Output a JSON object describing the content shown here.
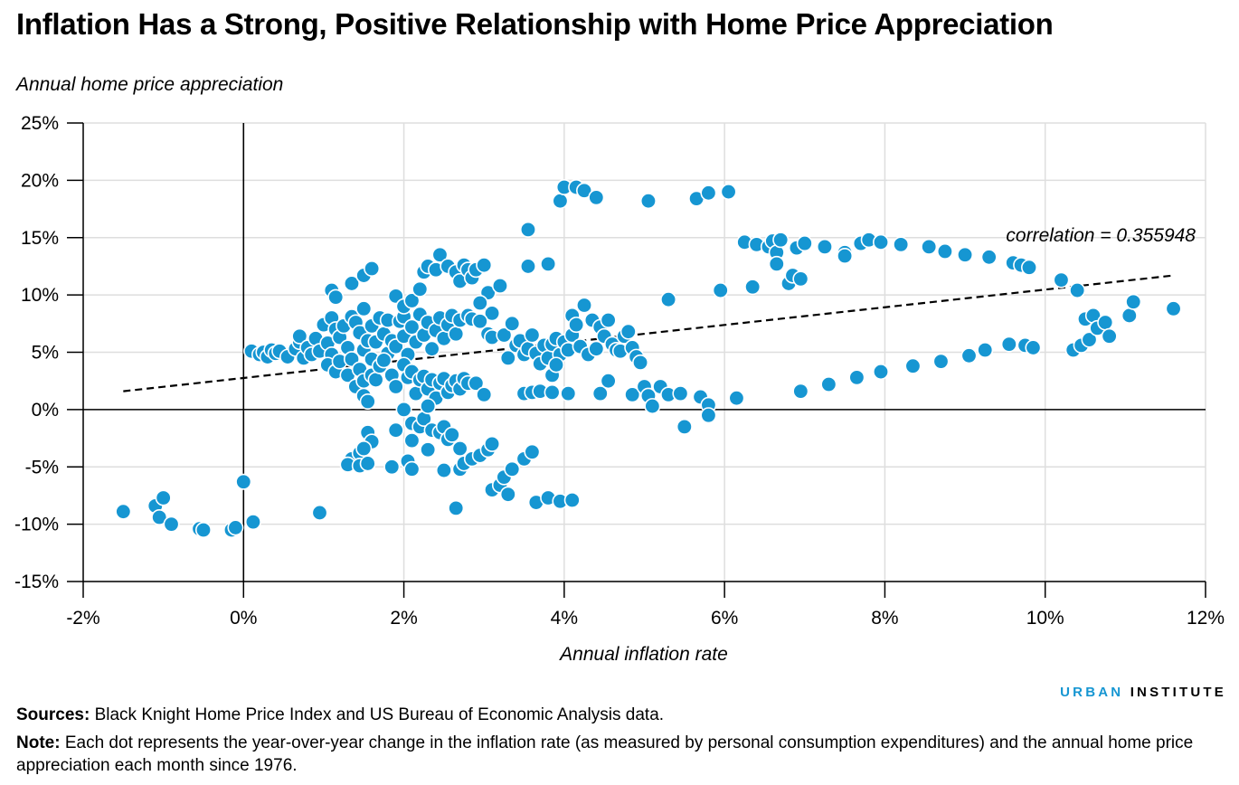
{
  "title": "Inflation Has a Strong, Positive Relationship with Home Price Appreciation",
  "brand": {
    "part1": "URBAN",
    "part2": "INSTITUTE"
  },
  "footer": {
    "sources_label": "Sources:",
    "sources_text": "Black Knight Home Price Index and US Bureau of Economic Analysis data.",
    "note_label": "Note:",
    "note_text": "Each dot represents the year-over-year change in the inflation rate (as measured by personal consumption expenditures) and the annual home price appreciation each month since 1976."
  },
  "colors": {
    "dot": "#1696d2",
    "grid": "#dedede",
    "axis": "#000000",
    "text": "#000000"
  },
  "chart_data": {
    "type": "scatter",
    "xlabel": "Annual inflation rate",
    "ylabel": "Annual home price appreciation",
    "xlim": [
      -2,
      12
    ],
    "ylim": [
      -15,
      25
    ],
    "xticks": [
      -2,
      0,
      2,
      4,
      6,
      8,
      10,
      12
    ],
    "yticks": [
      -15,
      -10,
      -5,
      0,
      5,
      10,
      15,
      20,
      25
    ],
    "xtick_labels": [
      "-2%",
      "0%",
      "2%",
      "4%",
      "6%",
      "8%",
      "10%",
      "12%"
    ],
    "ytick_labels": [
      "-15%",
      "-10%",
      "-5%",
      "0%",
      "5%",
      "10%",
      "15%",
      "20%",
      "25%"
    ],
    "grid": true,
    "trendline": {
      "style": "dashed",
      "x": [
        -1.5,
        11.6
      ],
      "y": [
        1.6,
        11.7
      ]
    },
    "annotation": "correlation = 0.355948",
    "points": [
      [
        -1.5,
        -8.9
      ],
      [
        -1.1,
        -8.4
      ],
      [
        -1.05,
        -9.4
      ],
      [
        -1.0,
        -7.7
      ],
      [
        -0.9,
        -10.0
      ],
      [
        -0.55,
        -10.4
      ],
      [
        -0.5,
        -10.5
      ],
      [
        -0.15,
        -10.5
      ],
      [
        -0.1,
        -10.3
      ],
      [
        0.0,
        -6.3
      ],
      [
        0.12,
        -9.8
      ],
      [
        0.95,
        -9.0
      ],
      [
        0.1,
        5.1
      ],
      [
        0.2,
        4.8
      ],
      [
        0.25,
        5.0
      ],
      [
        0.3,
        4.6
      ],
      [
        0.35,
        5.2
      ],
      [
        0.4,
        4.9
      ],
      [
        0.45,
        5.1
      ],
      [
        0.55,
        4.6
      ],
      [
        0.65,
        5.3
      ],
      [
        0.7,
        5.9
      ],
      [
        0.7,
        6.4
      ],
      [
        0.75,
        4.5
      ],
      [
        0.8,
        5.4
      ],
      [
        0.85,
        4.8
      ],
      [
        0.9,
        6.2
      ],
      [
        0.95,
        5.1
      ],
      [
        1.0,
        7.4
      ],
      [
        1.05,
        5.8
      ],
      [
        1.1,
        8.0
      ],
      [
        1.15,
        7.0
      ],
      [
        1.1,
        4.8
      ],
      [
        1.2,
        6.3
      ],
      [
        1.25,
        7.3
      ],
      [
        1.3,
        5.4
      ],
      [
        1.35,
        8.1
      ],
      [
        1.4,
        7.6
      ],
      [
        1.45,
        6.7
      ],
      [
        1.5,
        5.2
      ],
      [
        1.5,
        8.8
      ],
      [
        1.55,
        6.0
      ],
      [
        1.6,
        7.3
      ],
      [
        1.6,
        4.4
      ],
      [
        1.65,
        5.9
      ],
      [
        1.7,
        8.0
      ],
      [
        1.75,
        6.6
      ],
      [
        1.8,
        4.9
      ],
      [
        1.8,
        7.8
      ],
      [
        1.85,
        6.0
      ],
      [
        1.9,
        5.5
      ],
      [
        1.95,
        7.7
      ],
      [
        2.0,
        6.4
      ],
      [
        2.0,
        8.1
      ],
      [
        2.05,
        4.8
      ],
      [
        2.1,
        7.2
      ],
      [
        2.15,
        5.9
      ],
      [
        2.2,
        8.3
      ],
      [
        2.25,
        6.5
      ],
      [
        2.3,
        7.6
      ],
      [
        2.35,
        5.3
      ],
      [
        2.4,
        6.9
      ],
      [
        2.45,
        8.0
      ],
      [
        2.5,
        6.2
      ],
      [
        2.55,
        7.4
      ],
      [
        2.6,
        8.2
      ],
      [
        2.65,
        6.6
      ],
      [
        2.7,
        7.8
      ],
      [
        2.8,
        8.2
      ],
      [
        2.85,
        7.9
      ],
      [
        1.1,
        10.4
      ],
      [
        1.15,
        9.8
      ],
      [
        1.35,
        11.0
      ],
      [
        1.5,
        11.7
      ],
      [
        1.6,
        12.3
      ],
      [
        1.9,
        9.9
      ],
      [
        2.0,
        9.0
      ],
      [
        2.1,
        9.5
      ],
      [
        2.2,
        10.5
      ],
      [
        2.25,
        12.0
      ],
      [
        2.3,
        12.5
      ],
      [
        2.4,
        12.2
      ],
      [
        2.45,
        13.5
      ],
      [
        2.55,
        12.5
      ],
      [
        2.65,
        12.0
      ],
      [
        2.7,
        11.2
      ],
      [
        2.75,
        12.6
      ],
      [
        2.8,
        12.2
      ],
      [
        2.85,
        11.5
      ],
      [
        2.9,
        12.2
      ],
      [
        3.0,
        12.6
      ],
      [
        3.05,
        10.2
      ],
      [
        3.2,
        10.8
      ],
      [
        2.95,
        9.3
      ],
      [
        3.1,
        8.4
      ],
      [
        2.95,
        7.7
      ],
      [
        3.05,
        6.6
      ],
      [
        3.1,
        6.3
      ],
      [
        1.05,
        3.9
      ],
      [
        1.15,
        3.3
      ],
      [
        1.2,
        4.2
      ],
      [
        1.3,
        3.0
      ],
      [
        1.35,
        4.4
      ],
      [
        1.4,
        2.0
      ],
      [
        1.45,
        3.5
      ],
      [
        1.5,
        2.5
      ],
      [
        1.5,
        1.2
      ],
      [
        1.55,
        0.7
      ],
      [
        1.6,
        3.0
      ],
      [
        1.65,
        2.6
      ],
      [
        1.7,
        3.8
      ],
      [
        1.75,
        4.3
      ],
      [
        1.85,
        3.0
      ],
      [
        1.9,
        2.0
      ],
      [
        2.0,
        3.9
      ],
      [
        2.05,
        2.8
      ],
      [
        2.1,
        3.3
      ],
      [
        2.15,
        1.4
      ],
      [
        2.2,
        2.6
      ],
      [
        2.25,
        2.9
      ],
      [
        2.3,
        1.8
      ],
      [
        2.35,
        2.6
      ],
      [
        2.4,
        1.0
      ],
      [
        2.45,
        2.3
      ],
      [
        2.5,
        2.7
      ],
      [
        2.55,
        1.5
      ],
      [
        2.6,
        2.1
      ],
      [
        2.65,
        2.5
      ],
      [
        2.7,
        1.8
      ],
      [
        2.75,
        2.7
      ],
      [
        2.8,
        2.3
      ],
      [
        2.9,
        2.3
      ],
      [
        3.0,
        1.3
      ],
      [
        2.0,
        0.0
      ],
      [
        2.1,
        -1.2
      ],
      [
        2.2,
        -1.5
      ],
      [
        2.25,
        -0.8
      ],
      [
        2.3,
        0.3
      ],
      [
        2.35,
        -1.8
      ],
      [
        2.45,
        -2.0
      ],
      [
        2.5,
        -1.5
      ],
      [
        2.55,
        -2.6
      ],
      [
        2.6,
        -2.2
      ],
      [
        2.7,
        -3.4
      ],
      [
        1.9,
        -1.8
      ],
      [
        2.1,
        -2.7
      ],
      [
        1.55,
        -2.0
      ],
      [
        1.6,
        -2.8
      ],
      [
        1.35,
        -4.3
      ],
      [
        1.45,
        -3.8
      ],
      [
        1.5,
        -3.4
      ],
      [
        1.3,
        -4.8
      ],
      [
        1.45,
        -4.9
      ],
      [
        1.55,
        -4.7
      ],
      [
        1.85,
        -5.0
      ],
      [
        2.05,
        -4.5
      ],
      [
        2.1,
        -5.2
      ],
      [
        2.3,
        -3.5
      ],
      [
        2.5,
        -5.3
      ],
      [
        2.7,
        -5.2
      ],
      [
        2.75,
        -4.7
      ],
      [
        2.85,
        -4.3
      ],
      [
        2.95,
        -4.0
      ],
      [
        3.05,
        -3.5
      ],
      [
        3.1,
        -3.0
      ],
      [
        3.1,
        -7.0
      ],
      [
        3.2,
        -6.6
      ],
      [
        3.25,
        -5.9
      ],
      [
        3.3,
        -7.4
      ],
      [
        3.35,
        -5.2
      ],
      [
        3.5,
        -4.3
      ],
      [
        3.6,
        -3.7
      ],
      [
        3.65,
        -8.1
      ],
      [
        3.8,
        -7.7
      ],
      [
        3.95,
        -8.0
      ],
      [
        4.1,
        -7.9
      ],
      [
        2.65,
        -8.6
      ],
      [
        3.25,
        6.5
      ],
      [
        3.3,
        4.5
      ],
      [
        3.35,
        7.5
      ],
      [
        3.4,
        5.6
      ],
      [
        3.45,
        6.0
      ],
      [
        3.5,
        4.8
      ],
      [
        3.55,
        5.3
      ],
      [
        3.6,
        6.5
      ],
      [
        3.65,
        4.9
      ],
      [
        3.7,
        4.0
      ],
      [
        3.75,
        5.6
      ],
      [
        3.8,
        4.5
      ],
      [
        3.85,
        5.7
      ],
      [
        3.9,
        6.2
      ],
      [
        3.95,
        4.8
      ],
      [
        4.0,
        5.9
      ],
      [
        4.05,
        5.2
      ],
      [
        4.1,
        6.5
      ],
      [
        4.1,
        8.2
      ],
      [
        4.15,
        7.4
      ],
      [
        4.2,
        5.5
      ],
      [
        4.25,
        9.1
      ],
      [
        4.3,
        4.8
      ],
      [
        4.35,
        7.8
      ],
      [
        4.4,
        5.3
      ],
      [
        4.45,
        7.2
      ],
      [
        4.5,
        6.4
      ],
      [
        4.55,
        7.8
      ],
      [
        4.6,
        5.7
      ],
      [
        4.65,
        5.2
      ],
      [
        4.7,
        5.1
      ],
      [
        4.75,
        6.4
      ],
      [
        4.8,
        6.8
      ],
      [
        4.85,
        5.4
      ],
      [
        4.9,
        4.6
      ],
      [
        4.95,
        4.1
      ],
      [
        3.5,
        1.4
      ],
      [
        3.6,
        1.5
      ],
      [
        3.7,
        1.6
      ],
      [
        3.85,
        1.5
      ],
      [
        3.85,
        3.0
      ],
      [
        3.9,
        3.9
      ],
      [
        4.05,
        1.4
      ],
      [
        4.45,
        1.4
      ],
      [
        4.55,
        2.5
      ],
      [
        4.85,
        1.3
      ],
      [
        5.0,
        2.0
      ],
      [
        5.05,
        1.2
      ],
      [
        5.1,
        0.3
      ],
      [
        5.2,
        2.0
      ],
      [
        5.3,
        1.3
      ],
      [
        5.45,
        1.4
      ],
      [
        5.7,
        1.1
      ],
      [
        5.8,
        0.4
      ],
      [
        5.8,
        -0.5
      ],
      [
        5.5,
        -1.5
      ],
      [
        6.15,
        1.0
      ],
      [
        5.3,
        9.6
      ],
      [
        3.55,
        15.7
      ],
      [
        3.55,
        12.5
      ],
      [
        3.8,
        12.7
      ],
      [
        3.95,
        18.2
      ],
      [
        4.0,
        19.4
      ],
      [
        4.15,
        19.4
      ],
      [
        4.25,
        19.1
      ],
      [
        4.4,
        18.5
      ],
      [
        5.05,
        18.2
      ],
      [
        5.65,
        18.4
      ],
      [
        5.8,
        18.9
      ],
      [
        6.05,
        19.0
      ],
      [
        5.95,
        10.4
      ],
      [
        6.35,
        10.7
      ],
      [
        6.25,
        14.6
      ],
      [
        6.4,
        14.4
      ],
      [
        6.55,
        14.2
      ],
      [
        6.6,
        14.7
      ],
      [
        6.65,
        13.7
      ],
      [
        6.65,
        12.7
      ],
      [
        6.7,
        14.8
      ],
      [
        6.8,
        11.0
      ],
      [
        6.85,
        11.7
      ],
      [
        6.9,
        14.1
      ],
      [
        6.95,
        11.4
      ],
      [
        7.0,
        14.5
      ],
      [
        7.25,
        14.2
      ],
      [
        7.5,
        13.7
      ],
      [
        7.5,
        13.4
      ],
      [
        7.7,
        14.5
      ],
      [
        7.8,
        14.8
      ],
      [
        7.95,
        14.6
      ],
      [
        8.2,
        14.4
      ],
      [
        8.55,
        14.2
      ],
      [
        8.75,
        13.8
      ],
      [
        9.0,
        13.5
      ],
      [
        9.3,
        13.3
      ],
      [
        9.6,
        12.8
      ],
      [
        9.7,
        12.6
      ],
      [
        9.8,
        12.4
      ],
      [
        10.2,
        11.3
      ],
      [
        10.4,
        10.4
      ],
      [
        6.95,
        1.6
      ],
      [
        7.3,
        2.2
      ],
      [
        7.65,
        2.8
      ],
      [
        7.95,
        3.3
      ],
      [
        8.35,
        3.8
      ],
      [
        8.7,
        4.2
      ],
      [
        9.05,
        4.7
      ],
      [
        9.25,
        5.2
      ],
      [
        9.55,
        5.7
      ],
      [
        9.75,
        5.6
      ],
      [
        9.85,
        5.4
      ],
      [
        10.35,
        5.2
      ],
      [
        10.45,
        5.6
      ],
      [
        10.55,
        6.1
      ],
      [
        10.5,
        7.9
      ],
      [
        10.6,
        8.2
      ],
      [
        10.65,
        7.1
      ],
      [
        10.75,
        7.6
      ],
      [
        10.8,
        6.4
      ],
      [
        11.05,
        8.2
      ],
      [
        11.1,
        9.4
      ],
      [
        11.6,
        8.8
      ]
    ]
  }
}
